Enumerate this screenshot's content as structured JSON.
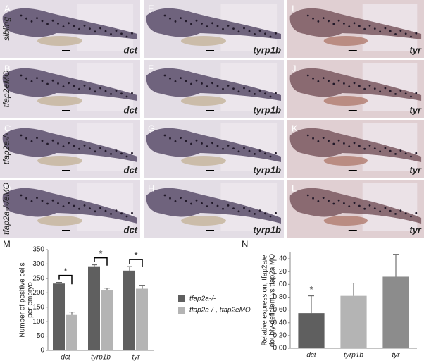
{
  "rows": [
    "sibling",
    "tfap2eMO",
    "tfap2a-/-",
    "tfap2a-/-/eMO"
  ],
  "panels": [
    {
      "letter": "A",
      "gene": "dct"
    },
    {
      "letter": "E",
      "gene": "tyrp1b"
    },
    {
      "letter": "I",
      "gene": "tyr"
    },
    {
      "letter": "B",
      "gene": "dct"
    },
    {
      "letter": "F",
      "gene": "tyrp1b"
    },
    {
      "letter": "J",
      "gene": "tyr"
    },
    {
      "letter": "C",
      "gene": "dct"
    },
    {
      "letter": "G",
      "gene": "tyrp1b"
    },
    {
      "letter": "K",
      "gene": "tyr"
    },
    {
      "letter": "D",
      "gene": "dct"
    },
    {
      "letter": "H",
      "gene": "tyrp1b"
    },
    {
      "letter": "L",
      "gene": "tyr"
    }
  ],
  "chart_data": [
    {
      "type": "bar",
      "panel": "M",
      "ylabel": [
        "Number of positive cells",
        "per embryo"
      ],
      "categories": [
        "dct",
        "tyrp1b",
        "tyr"
      ],
      "series": [
        {
          "name": "tfap2a-/-",
          "color": "#5f5f5f",
          "values": [
            232,
            292,
            277
          ],
          "errors": [
            4,
            5,
            14
          ]
        },
        {
          "name": "tfap2a-/-, tfap2eMO",
          "color": "#b4b4b4",
          "values": [
            123,
            208,
            214
          ],
          "errors": [
            10,
            8,
            12
          ]
        }
      ],
      "annotations": [
        "*",
        "*",
        "*"
      ],
      "ylim": [
        0,
        350
      ],
      "yticks": [
        0,
        50,
        100,
        150,
        200,
        250,
        300,
        350
      ],
      "legend": "right"
    },
    {
      "type": "bar",
      "panel": "N",
      "ylabel": [
        "Relative expression, tfap2a/e",
        "doubly-deficient vs tfap2a MO"
      ],
      "categories": [
        "dct",
        "tyrp1b",
        "tyr"
      ],
      "values": [
        0.55,
        0.82,
        1.12
      ],
      "errors": [
        0.27,
        0.2,
        0.35
      ],
      "colors": [
        "#5f5f5f",
        "#b4b4b4",
        "#8c8c8c"
      ],
      "annotations": [
        "*"
      ],
      "ylim": [
        0,
        1.5
      ],
      "yticks": [
        {
          "value": 0,
          "label": "0.00"
        },
        {
          "value": 0.2,
          "label": "0.20"
        },
        {
          "value": 0.4,
          "label": "0.40"
        },
        {
          "value": 0.6,
          "label": "0.60"
        },
        {
          "value": 0.8,
          "label": "0.80"
        },
        {
          "value": 1.0,
          "label": "1.00"
        },
        {
          "value": 1.2,
          "label": "1.20"
        },
        {
          "value": 1.4,
          "label": "1.40"
        }
      ]
    }
  ]
}
